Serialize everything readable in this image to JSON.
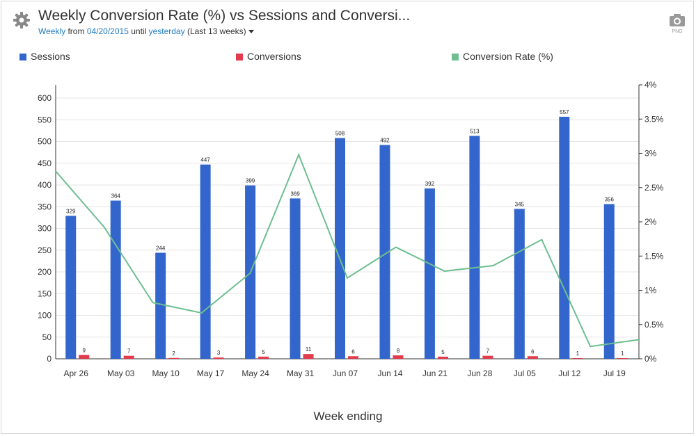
{
  "header": {
    "title": "Weekly Conversion Rate (%) vs Sessions and Conversi...",
    "period_link": "Weekly",
    "from_label": "from",
    "start_date": "04/20/2015",
    "until_label": "until",
    "end_date": "yesterday",
    "range_note": "(Last 13 weeks)",
    "export_label": "PNG"
  },
  "colors": {
    "sessions": "#3366cc",
    "conversions": "#e23b4e",
    "rate": "#6dbf8f"
  },
  "chart_data": {
    "type": "bar+line",
    "title": "Weekly Conversion Rate (%) vs Sessions and Conversions",
    "xlabel": "Week ending",
    "categories": [
      "Apr 26",
      "May 03",
      "May 10",
      "May 17",
      "May 24",
      "May 31",
      "Jun 07",
      "Jun 14",
      "Jun 21",
      "Jun 28",
      "Jul 05",
      "Jul 12",
      "Jul 19"
    ],
    "y_left": {
      "min": 0,
      "max": 600,
      "ticks": [
        "0",
        "50",
        "100",
        "150",
        "200",
        "250",
        "300",
        "350",
        "400",
        "450",
        "500",
        "550",
        "600"
      ]
    },
    "y_right": {
      "min": 0,
      "max": 4,
      "ticks": [
        "0%",
        "0.5%",
        "1%",
        "1.5%",
        "2%",
        "2.5%",
        "3%",
        "3.5%",
        "4%"
      ]
    },
    "series": [
      {
        "name": "Sessions",
        "type": "bar",
        "axis": "left",
        "values": [
          329,
          364,
          244,
          447,
          399,
          369,
          508,
          492,
          392,
          513,
          345,
          557,
          356
        ]
      },
      {
        "name": "Conversions",
        "type": "bar",
        "axis": "left",
        "values": [
          9,
          7,
          2,
          3,
          5,
          11,
          6,
          8,
          5,
          7,
          6,
          1,
          1
        ]
      },
      {
        "name": "Conversion Rate (%)",
        "type": "line",
        "axis": "right",
        "values": [
          2.74,
          1.92,
          0.82,
          0.67,
          1.25,
          2.98,
          1.18,
          1.63,
          1.28,
          1.36,
          1.74,
          0.18,
          0.28
        ]
      }
    ]
  }
}
